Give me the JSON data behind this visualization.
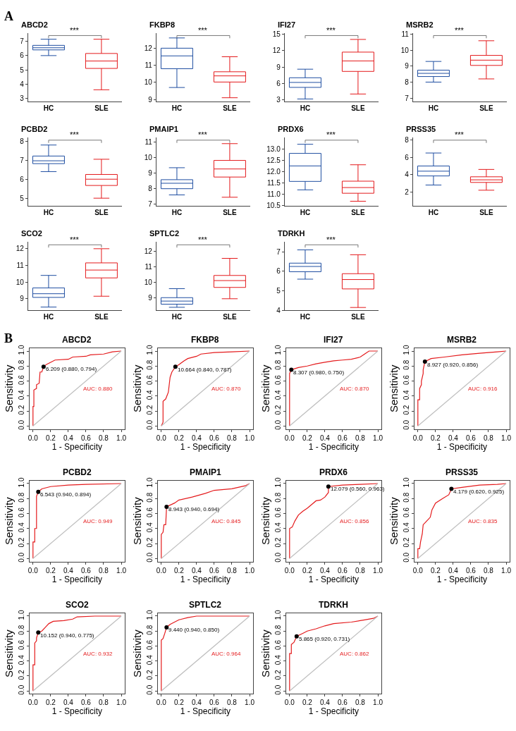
{
  "chart_data": [
    {
      "type": "box",
      "title": "ABCD2",
      "categories": [
        "HC",
        "SLE"
      ],
      "colors": [
        "#1f4ea1",
        "#e41a1c"
      ],
      "ylim": [
        2.8,
        7.6
      ],
      "yticks": [
        3,
        4,
        5,
        6,
        7
      ],
      "annotations": [
        "***",
        "A"
      ],
      "boxes": [
        {
          "low": 6.0,
          "q1": 6.4,
          "median": 6.55,
          "q3": 6.72,
          "high": 7.15
        },
        {
          "low": 3.6,
          "q1": 5.1,
          "median": 5.62,
          "q3": 6.15,
          "high": 7.15
        }
      ]
    },
    {
      "type": "box",
      "title": "FKBP8",
      "categories": [
        "HC",
        "SLE"
      ],
      "colors": [
        "#1f4ea1",
        "#e41a1c"
      ],
      "ylim": [
        8.9,
        12.9
      ],
      "yticks": [
        9,
        10,
        11,
        12
      ],
      "annotations": [
        "***"
      ],
      "boxes": [
        {
          "low": 9.7,
          "q1": 10.8,
          "median": 11.55,
          "q3": 12.0,
          "high": 12.6
        },
        {
          "low": 9.1,
          "q1": 10.02,
          "median": 10.38,
          "q3": 10.62,
          "high": 11.5
        }
      ]
    },
    {
      "type": "box",
      "title": "IFI27",
      "categories": [
        "HC",
        "SLE"
      ],
      "colors": [
        "#1f4ea1",
        "#e41a1c"
      ],
      "ylim": [
        2.8,
        15.2
      ],
      "yticks": [
        3,
        6,
        9,
        12,
        15
      ],
      "annotations": [
        "***"
      ],
      "boxes": [
        {
          "low": 3.2,
          "q1": 5.3,
          "median": 6.2,
          "q3": 7.05,
          "high": 8.6
        },
        {
          "low": 4.1,
          "q1": 8.2,
          "median": 10.1,
          "q3": 11.7,
          "high": 14.0
        }
      ]
    },
    {
      "type": "box",
      "title": "MSRB2",
      "categories": [
        "HC",
        "SLE"
      ],
      "colors": [
        "#1f4ea1",
        "#e41a1c"
      ],
      "ylim": [
        6.8,
        11.1
      ],
      "yticks": [
        7,
        8,
        9,
        10,
        11
      ],
      "annotations": [
        "***"
      ],
      "boxes": [
        {
          "low": 8.0,
          "q1": 8.35,
          "median": 8.55,
          "q3": 8.75,
          "high": 9.3
        },
        {
          "low": 8.2,
          "q1": 9.05,
          "median": 9.38,
          "q3": 9.68,
          "high": 10.6
        }
      ]
    },
    {
      "type": "box",
      "title": "PCBD2",
      "categories": [
        "HC",
        "SLE"
      ],
      "colors": [
        "#1f4ea1",
        "#e41a1c"
      ],
      "ylim": [
        4.6,
        8.2
      ],
      "yticks": [
        5,
        6,
        7,
        8
      ],
      "annotations": [
        "***"
      ],
      "boxes": [
        {
          "low": 6.4,
          "q1": 6.82,
          "median": 6.97,
          "q3": 7.22,
          "high": 7.8
        },
        {
          "low": 5.0,
          "q1": 5.67,
          "median": 6.0,
          "q3": 6.25,
          "high": 7.05
        }
      ]
    },
    {
      "type": "box",
      "title": "PMAIP1",
      "categories": [
        "HC",
        "SLE"
      ],
      "colors": [
        "#1f4ea1",
        "#e41a1c"
      ],
      "ylim": [
        6.9,
        11.3
      ],
      "yticks": [
        7,
        8,
        9,
        10,
        11
      ],
      "annotations": [
        "***"
      ],
      "boxes": [
        {
          "low": 7.6,
          "q1": 8.0,
          "median": 8.35,
          "q3": 8.58,
          "high": 9.35
        },
        {
          "low": 7.45,
          "q1": 8.75,
          "median": 9.27,
          "q3": 9.82,
          "high": 10.9
        }
      ]
    },
    {
      "type": "box",
      "title": "PRDX6",
      "categories": [
        "HC",
        "SLE"
      ],
      "colors": [
        "#1f4ea1",
        "#e41a1c"
      ],
      "ylim": [
        10.5,
        13.5
      ],
      "yticks": [
        {
          "value": 10.5,
          "label": "10.5"
        },
        {
          "value": 11,
          "label": "11.0"
        },
        {
          "value": 11.5,
          "label": "11.5"
        },
        {
          "value": 12,
          "label": "12.0"
        },
        {
          "value": 12.5,
          "label": "12.5"
        },
        {
          "value": 13,
          "label": "13.0"
        }
      ],
      "annotations": [
        "***"
      ],
      "boxes": [
        {
          "low": 11.2,
          "q1": 11.57,
          "median": 12.25,
          "q3": 12.8,
          "high": 13.2
        },
        {
          "low": 10.7,
          "q1": 11.05,
          "median": 11.3,
          "q3": 11.58,
          "high": 12.3
        }
      ]
    },
    {
      "type": "box",
      "title": "PRSS35",
      "categories": [
        "HC",
        "SLE"
      ],
      "colors": [
        "#1f4ea1",
        "#e41a1c"
      ],
      "ylim": [
        0.4,
        8.3
      ],
      "yticks": [
        2,
        4,
        6,
        8
      ],
      "annotations": [
        "***"
      ],
      "boxes": [
        {
          "low": 2.8,
          "q1": 3.85,
          "median": 4.4,
          "q3": 5.0,
          "high": 6.5
        },
        {
          "low": 2.2,
          "q1": 3.1,
          "median": 3.4,
          "q3": 3.75,
          "high": 4.6
        }
      ]
    },
    {
      "type": "box",
      "title": "SCO2",
      "categories": [
        "HC",
        "SLE"
      ],
      "colors": [
        "#1f4ea1",
        "#e41a1c"
      ],
      "ylim": [
        8.3,
        12.4
      ],
      "yticks": [
        9,
        10,
        11,
        12
      ],
      "annotations": [
        "***"
      ],
      "boxes": [
        {
          "low": 8.5,
          "q1": 9.08,
          "median": 9.3,
          "q3": 9.65,
          "high": 10.4
        },
        {
          "low": 9.15,
          "q1": 10.25,
          "median": 10.72,
          "q3": 11.15,
          "high": 12.0
        }
      ]
    },
    {
      "type": "box",
      "title": "SPTLC2",
      "categories": [
        "HC",
        "SLE"
      ],
      "colors": [
        "#1f4ea1",
        "#e41a1c"
      ],
      "ylim": [
        8.2,
        12.6
      ],
      "yticks": [
        9,
        10,
        11,
        12
      ],
      "annotations": [
        "***"
      ],
      "boxes": [
        {
          "low": 8.4,
          "q1": 8.6,
          "median": 8.8,
          "q3": 9.02,
          "high": 9.6
        },
        {
          "low": 8.95,
          "q1": 9.68,
          "median": 10.12,
          "q3": 10.45,
          "high": 11.55
        }
      ]
    },
    {
      "type": "box",
      "title": "TDRKH",
      "categories": [
        "HC",
        "SLE"
      ],
      "colors": [
        "#1f4ea1",
        "#e41a1c"
      ],
      "ylim": [
        4,
        7.5
      ],
      "yticks": [
        4,
        5,
        6,
        7
      ],
      "annotations": [
        "***"
      ],
      "boxes": [
        {
          "low": 5.6,
          "q1": 5.98,
          "median": 6.25,
          "q3": 6.42,
          "high": 7.1
        },
        {
          "low": 4.15,
          "q1": 5.1,
          "median": 5.58,
          "q3": 5.88,
          "high": 6.85
        }
      ]
    },
    {
      "type": "line",
      "title": "ABCD2",
      "xlabel": "1 - Specificity",
      "ylabel": "Sensitivity",
      "xlim": [
        -0.04,
        1.04
      ],
      "ylim": [
        -0.04,
        1.04
      ],
      "xticks": [
        {
          "value": 0,
          "label": "0.0"
        },
        {
          "value": 0.2,
          "label": "0.2"
        },
        {
          "value": 0.4,
          "label": "0.4"
        },
        {
          "value": 0.6,
          "label": "0.6"
        },
        {
          "value": 0.8,
          "label": "0.8"
        },
        {
          "value": 1,
          "label": "1.0"
        }
      ],
      "yticks": [
        {
          "value": 0,
          "label": "0.0"
        },
        {
          "value": 0.2,
          "label": "0.2"
        },
        {
          "value": 0.4,
          "label": "0.4"
        },
        {
          "value": 0.6,
          "label": "0.6"
        },
        {
          "value": 0.8,
          "label": "0.8"
        },
        {
          "value": 1,
          "label": "1.0"
        }
      ],
      "annotations": [
        {
          "text": "6.209 (0.880, 0.794)",
          "x": 0.12,
          "y": 0.794
        },
        "AUC: 0.880",
        "B"
      ],
      "series": [
        {
          "color": "#e41a1c",
          "x": [
            0,
            0,
            0.01,
            0.01,
            0.04,
            0.04,
            0.07,
            0.08,
            0.1,
            0.12,
            0.15,
            0.2,
            0.25,
            0.4,
            0.45,
            0.6,
            0.65,
            0.8,
            0.9,
            1
          ],
          "values": [
            0,
            0.26,
            0.26,
            0.48,
            0.5,
            0.55,
            0.57,
            0.72,
            0.72,
            0.79,
            0.82,
            0.85,
            0.88,
            0.89,
            0.92,
            0.93,
            0.95,
            0.96,
            0.99,
            1
          ]
        },
        {
          "color": "#bebebe",
          "x": [
            0,
            1
          ],
          "values": [
            0,
            1
          ]
        },
        {
          "type": "scatter",
          "marker": "circle",
          "color": "#000000",
          "x": [
            0.12
          ],
          "values": [
            0.79
          ]
        }
      ]
    },
    {
      "type": "line",
      "title": "FKBP8",
      "xlabel": "1 - Specificity",
      "ylabel": "Sensitivity",
      "xlim": [
        -0.04,
        1.04
      ],
      "ylim": [
        -0.04,
        1.04
      ],
      "xticks": [
        {
          "value": 0,
          "label": "0.0"
        },
        {
          "value": 0.2,
          "label": "0.2"
        },
        {
          "value": 0.4,
          "label": "0.4"
        },
        {
          "value": 0.6,
          "label": "0.6"
        },
        {
          "value": 0.8,
          "label": "0.8"
        },
        {
          "value": 1,
          "label": "1.0"
        }
      ],
      "yticks": [
        {
          "value": 0,
          "label": "0.0"
        },
        {
          "value": 0.2,
          "label": "0.2"
        },
        {
          "value": 0.4,
          "label": "0.4"
        },
        {
          "value": 0.6,
          "label": "0.6"
        },
        {
          "value": 0.8,
          "label": "0.8"
        },
        {
          "value": 1,
          "label": "1.0"
        }
      ],
      "annotations": [
        {
          "text": "10.664 (0.840, 0.787)",
          "x": 0.16,
          "y": 0.787
        },
        "AUC: 0.870"
      ],
      "series": [
        {
          "color": "#e41a1c",
          "x": [
            0,
            0.02,
            0.02,
            0.05,
            0.08,
            0.1,
            0.12,
            0.16,
            0.2,
            0.26,
            0.3,
            0.4,
            0.45,
            0.6,
            0.8,
            1
          ],
          "values": [
            0,
            0.05,
            0.33,
            0.36,
            0.45,
            0.65,
            0.72,
            0.79,
            0.82,
            0.87,
            0.9,
            0.93,
            0.96,
            0.98,
            0.99,
            1
          ]
        },
        {
          "color": "#bebebe",
          "x": [
            0,
            1
          ],
          "values": [
            0,
            1
          ]
        },
        {
          "type": "scatter",
          "marker": "circle",
          "color": "#000000",
          "x": [
            0.16
          ],
          "values": [
            0.79
          ]
        }
      ]
    },
    {
      "type": "line",
      "title": "IFI27",
      "xlabel": "1 - Specificity",
      "ylabel": "Sensitivity",
      "xlim": [
        -0.04,
        1.04
      ],
      "ylim": [
        -0.04,
        1.04
      ],
      "xticks": [
        {
          "value": 0,
          "label": "0.0"
        },
        {
          "value": 0.2,
          "label": "0.2"
        },
        {
          "value": 0.4,
          "label": "0.4"
        },
        {
          "value": 0.6,
          "label": "0.6"
        },
        {
          "value": 0.8,
          "label": "0.8"
        },
        {
          "value": 1,
          "label": "1.0"
        }
      ],
      "yticks": [
        {
          "value": 0,
          "label": "0.0"
        },
        {
          "value": 0.2,
          "label": "0.2"
        },
        {
          "value": 0.4,
          "label": "0.4"
        },
        {
          "value": 0.6,
          "label": "0.6"
        },
        {
          "value": 0.8,
          "label": "0.8"
        },
        {
          "value": 1,
          "label": "1.0"
        }
      ],
      "annotations": [
        {
          "text": "8.307 (0.980, 0.750)",
          "x": 0.02,
          "y": 0.75
        },
        "AUC: 0.870"
      ],
      "series": [
        {
          "color": "#e41a1c",
          "x": [
            0,
            0,
            0.02,
            0.1,
            0.2,
            0.3,
            0.4,
            0.5,
            0.6,
            0.7,
            0.8,
            0.85,
            0.9,
            1
          ],
          "values": [
            0,
            0.7,
            0.75,
            0.78,
            0.8,
            0.83,
            0.85,
            0.87,
            0.88,
            0.89,
            0.92,
            0.96,
            1,
            1
          ]
        },
        {
          "color": "#bebebe",
          "x": [
            0,
            1
          ],
          "values": [
            0,
            1
          ]
        },
        {
          "type": "scatter",
          "marker": "circle",
          "color": "#000000",
          "x": [
            0.02
          ],
          "values": [
            0.75
          ]
        }
      ]
    },
    {
      "type": "line",
      "title": "MSRB2",
      "xlabel": "1 - Specificity",
      "ylabel": "Sensitivity",
      "xlim": [
        -0.04,
        1.04
      ],
      "ylim": [
        -0.04,
        1.04
      ],
      "xticks": [
        {
          "value": 0,
          "label": "0.0"
        },
        {
          "value": 0.2,
          "label": "0.2"
        },
        {
          "value": 0.4,
          "label": "0.4"
        },
        {
          "value": 0.6,
          "label": "0.6"
        },
        {
          "value": 0.8,
          "label": "0.8"
        },
        {
          "value": 1,
          "label": "1.0"
        }
      ],
      "yticks": [
        {
          "value": 0,
          "label": "0.0"
        },
        {
          "value": 0.2,
          "label": "0.2"
        },
        {
          "value": 0.4,
          "label": "0.4"
        },
        {
          "value": 0.6,
          "label": "0.6"
        },
        {
          "value": 0.8,
          "label": "0.8"
        },
        {
          "value": 1,
          "label": "1.0"
        }
      ],
      "annotations": [
        {
          "text": "8.927 (0.920, 0.856)",
          "x": 0.08,
          "y": 0.856
        },
        "AUC: 0.916"
      ],
      "series": [
        {
          "color": "#e41a1c",
          "x": [
            0,
            0,
            0.02,
            0.02,
            0.04,
            0.04,
            0.06,
            0.06,
            0.08,
            0.15,
            0.3,
            0.5,
            0.7,
            0.9,
            1
          ],
          "values": [
            0,
            0.35,
            0.35,
            0.5,
            0.55,
            0.6,
            0.7,
            0.75,
            0.86,
            0.9,
            0.92,
            0.95,
            0.97,
            0.99,
            1
          ]
        },
        {
          "color": "#bebebe",
          "x": [
            0,
            1
          ],
          "values": [
            0,
            1
          ]
        },
        {
          "type": "scatter",
          "marker": "circle",
          "color": "#000000",
          "x": [
            0.08
          ],
          "values": [
            0.86
          ]
        }
      ]
    },
    {
      "type": "line",
      "title": "PCBD2",
      "xlabel": "1 - Specificity",
      "ylabel": "Sensitivity",
      "xlim": [
        -0.04,
        1.04
      ],
      "ylim": [
        -0.04,
        1.04
      ],
      "xticks": [
        {
          "value": 0,
          "label": "0.0"
        },
        {
          "value": 0.2,
          "label": "0.2"
        },
        {
          "value": 0.4,
          "label": "0.4"
        },
        {
          "value": 0.6,
          "label": "0.6"
        },
        {
          "value": 0.8,
          "label": "0.8"
        },
        {
          "value": 1,
          "label": "1.0"
        }
      ],
      "yticks": [
        {
          "value": 0,
          "label": "0.0"
        },
        {
          "value": 0.2,
          "label": "0.2"
        },
        {
          "value": 0.4,
          "label": "0.4"
        },
        {
          "value": 0.6,
          "label": "0.6"
        },
        {
          "value": 0.8,
          "label": "0.8"
        },
        {
          "value": 1,
          "label": "1.0"
        }
      ],
      "annotations": [
        {
          "text": "6.543 (0.940, 0.894)",
          "x": 0.06,
          "y": 0.894
        },
        "AUC: 0.949"
      ],
      "series": [
        {
          "color": "#e41a1c",
          "x": [
            0,
            0,
            0.02,
            0.02,
            0.04,
            0.04,
            0.06,
            0.1,
            0.2,
            0.4,
            0.6,
            1
          ],
          "values": [
            0,
            0.22,
            0.22,
            0.4,
            0.4,
            0.83,
            0.89,
            0.93,
            0.96,
            0.98,
            0.99,
            1
          ]
        },
        {
          "color": "#bebebe",
          "x": [
            0,
            1
          ],
          "values": [
            0,
            1
          ]
        },
        {
          "type": "scatter",
          "marker": "circle",
          "color": "#000000",
          "x": [
            0.06
          ],
          "values": [
            0.89
          ]
        }
      ]
    },
    {
      "type": "line",
      "title": "PMAIP1",
      "xlabel": "1 - Specificity",
      "ylabel": "Sensitivity",
      "xlim": [
        -0.04,
        1.04
      ],
      "ylim": [
        -0.04,
        1.04
      ],
      "xticks": [
        {
          "value": 0,
          "label": "0.0"
        },
        {
          "value": 0.2,
          "label": "0.2"
        },
        {
          "value": 0.4,
          "label": "0.4"
        },
        {
          "value": 0.6,
          "label": "0.6"
        },
        {
          "value": 0.8,
          "label": "0.8"
        },
        {
          "value": 1,
          "label": "1.0"
        }
      ],
      "yticks": [
        {
          "value": 0,
          "label": "0.0"
        },
        {
          "value": 0.2,
          "label": "0.2"
        },
        {
          "value": 0.4,
          "label": "0.4"
        },
        {
          "value": 0.6,
          "label": "0.6"
        },
        {
          "value": 0.8,
          "label": "0.8"
        },
        {
          "value": 1,
          "label": "1.0"
        }
      ],
      "annotations": [
        {
          "text": "8.943 (0.940, 0.694)",
          "x": 0.06,
          "y": 0.694
        },
        "AUC: 0.845"
      ],
      "series": [
        {
          "color": "#e41a1c",
          "x": [
            0,
            0,
            0.02,
            0.03,
            0.05,
            0.06,
            0.15,
            0.2,
            0.35,
            0.5,
            0.6,
            0.8,
            0.95,
            1
          ],
          "values": [
            0,
            0.32,
            0.35,
            0.45,
            0.45,
            0.69,
            0.74,
            0.78,
            0.82,
            0.87,
            0.91,
            0.93,
            0.97,
            1
          ]
        },
        {
          "color": "#bebebe",
          "x": [
            0,
            1
          ],
          "values": [
            0,
            1
          ]
        },
        {
          "type": "scatter",
          "marker": "circle",
          "color": "#000000",
          "x": [
            0.06
          ],
          "values": [
            0.69
          ]
        }
      ]
    },
    {
      "type": "line",
      "title": "PRDX6",
      "xlabel": "1 - Specificity",
      "ylabel": "Sensitivity",
      "xlim": [
        -0.04,
        1.04
      ],
      "ylim": [
        -0.04,
        1.04
      ],
      "xticks": [
        {
          "value": 0,
          "label": "0.0"
        },
        {
          "value": 0.2,
          "label": "0.2"
        },
        {
          "value": 0.4,
          "label": "0.4"
        },
        {
          "value": 0.6,
          "label": "0.6"
        },
        {
          "value": 0.8,
          "label": "0.8"
        },
        {
          "value": 1,
          "label": "1.0"
        }
      ],
      "yticks": [
        {
          "value": 0,
          "label": "0.0"
        },
        {
          "value": 0.2,
          "label": "0.2"
        },
        {
          "value": 0.4,
          "label": "0.4"
        },
        {
          "value": 0.6,
          "label": "0.6"
        },
        {
          "value": 0.8,
          "label": "0.8"
        },
        {
          "value": 1,
          "label": "1.0"
        }
      ],
      "annotations": [
        {
          "text": "12.079 (0.560, 0.963)",
          "x": 0.44,
          "y": 0.963
        },
        "AUC: 0.856"
      ],
      "series": [
        {
          "color": "#e41a1c",
          "x": [
            0,
            0,
            0.03,
            0.06,
            0.1,
            0.15,
            0.2,
            0.25,
            0.3,
            0.35,
            0.4,
            0.44,
            0.44,
            0.6,
            0.8,
            1
          ],
          "values": [
            0,
            0.4,
            0.42,
            0.5,
            0.58,
            0.63,
            0.67,
            0.72,
            0.77,
            0.78,
            0.82,
            0.88,
            0.96,
            0.98,
            0.99,
            1
          ]
        },
        {
          "color": "#bebebe",
          "x": [
            0,
            1
          ],
          "values": [
            0,
            1
          ]
        },
        {
          "type": "scatter",
          "marker": "circle",
          "color": "#000000",
          "x": [
            0.44
          ],
          "values": [
            0.96
          ]
        }
      ]
    },
    {
      "type": "line",
      "title": "PRSS35",
      "xlabel": "1 - Specificity",
      "ylabel": "Sensitivity",
      "xlim": [
        -0.04,
        1.04
      ],
      "ylim": [
        -0.04,
        1.04
      ],
      "xticks": [
        {
          "value": 0,
          "label": "0.0"
        },
        {
          "value": 0.2,
          "label": "0.2"
        },
        {
          "value": 0.4,
          "label": "0.4"
        },
        {
          "value": 0.6,
          "label": "0.6"
        },
        {
          "value": 0.8,
          "label": "0.8"
        },
        {
          "value": 1,
          "label": "1.0"
        }
      ],
      "yticks": [
        {
          "value": 0,
          "label": "0.0"
        },
        {
          "value": 0.2,
          "label": "0.2"
        },
        {
          "value": 0.4,
          "label": "0.4"
        },
        {
          "value": 0.6,
          "label": "0.6"
        },
        {
          "value": 0.8,
          "label": "0.8"
        },
        {
          "value": 1,
          "label": "1.0"
        }
      ],
      "annotations": [
        {
          "text": "4.179 (0.620, 0.925)",
          "x": 0.38,
          "y": 0.925
        },
        "AUC: 0.835"
      ],
      "series": [
        {
          "color": "#e41a1c",
          "x": [
            0,
            0,
            0.02,
            0.03,
            0.05,
            0.06,
            0.1,
            0.14,
            0.16,
            0.2,
            0.28,
            0.35,
            0.38,
            0.5,
            0.7,
            0.9,
            1
          ],
          "values": [
            0,
            0.13,
            0.13,
            0.22,
            0.33,
            0.45,
            0.5,
            0.55,
            0.65,
            0.74,
            0.8,
            0.85,
            0.93,
            0.95,
            0.98,
            0.99,
            1
          ]
        },
        {
          "color": "#bebebe",
          "x": [
            0,
            1
          ],
          "values": [
            0,
            1
          ]
        },
        {
          "type": "scatter",
          "marker": "circle",
          "color": "#000000",
          "x": [
            0.38
          ],
          "values": [
            0.93
          ]
        }
      ]
    },
    {
      "type": "line",
      "title": "SCO2",
      "xlabel": "1 - Specificity",
      "ylabel": "Sensitivity",
      "xlim": [
        -0.04,
        1.04
      ],
      "ylim": [
        -0.04,
        1.04
      ],
      "xticks": [
        {
          "value": 0,
          "label": "0.0"
        },
        {
          "value": 0.2,
          "label": "0.2"
        },
        {
          "value": 0.4,
          "label": "0.4"
        },
        {
          "value": 0.6,
          "label": "0.6"
        },
        {
          "value": 0.8,
          "label": "0.8"
        },
        {
          "value": 1,
          "label": "1.0"
        }
      ],
      "yticks": [
        {
          "value": 0,
          "label": "0.0"
        },
        {
          "value": 0.2,
          "label": "0.2"
        },
        {
          "value": 0.4,
          "label": "0.4"
        },
        {
          "value": 0.6,
          "label": "0.6"
        },
        {
          "value": 0.8,
          "label": "0.8"
        },
        {
          "value": 1,
          "label": "1.0"
        }
      ],
      "annotations": [
        {
          "text": "10.152 (0.940, 0.775)",
          "x": 0.06,
          "y": 0.775
        },
        "AUC: 0.932"
      ],
      "series": [
        {
          "color": "#e41a1c",
          "x": [
            0,
            0,
            0.02,
            0.02,
            0.04,
            0.04,
            0.06,
            0.1,
            0.14,
            0.18,
            0.23,
            0.35,
            0.45,
            0.5,
            0.7,
            1
          ],
          "values": [
            0,
            0.35,
            0.35,
            0.64,
            0.67,
            0.71,
            0.78,
            0.8,
            0.85,
            0.9,
            0.93,
            0.94,
            0.96,
            0.99,
            1,
            1
          ]
        },
        {
          "color": "#bebebe",
          "x": [
            0,
            1
          ],
          "values": [
            0,
            1
          ]
        },
        {
          "type": "scatter",
          "marker": "circle",
          "color": "#000000",
          "x": [
            0.06
          ],
          "values": [
            0.78
          ]
        }
      ]
    },
    {
      "type": "line",
      "title": "SPTLC2",
      "xlabel": "1 - Specificity",
      "ylabel": "Sensitivity",
      "xlim": [
        -0.04,
        1.04
      ],
      "ylim": [
        -0.04,
        1.04
      ],
      "xticks": [
        {
          "value": 0,
          "label": "0.0"
        },
        {
          "value": 0.2,
          "label": "0.2"
        },
        {
          "value": 0.4,
          "label": "0.4"
        },
        {
          "value": 0.6,
          "label": "0.6"
        },
        {
          "value": 0.8,
          "label": "0.8"
        },
        {
          "value": 1,
          "label": "1.0"
        }
      ],
      "yticks": [
        {
          "value": 0,
          "label": "0.0"
        },
        {
          "value": 0.2,
          "label": "0.2"
        },
        {
          "value": 0.4,
          "label": "0.4"
        },
        {
          "value": 0.6,
          "label": "0.6"
        },
        {
          "value": 0.8,
          "label": "0.8"
        },
        {
          "value": 1,
          "label": "1.0"
        }
      ],
      "annotations": [
        {
          "text": "9.440 (0.940, 0.850)",
          "x": 0.06,
          "y": 0.85
        },
        "AUC: 0.964"
      ],
      "series": [
        {
          "color": "#e41a1c",
          "x": [
            0,
            0,
            0.02,
            0.04,
            0.06,
            0.1,
            0.15,
            0.2,
            0.3,
            0.4,
            1
          ],
          "values": [
            0,
            0.68,
            0.7,
            0.77,
            0.85,
            0.89,
            0.92,
            0.95,
            0.98,
            1,
            1
          ]
        },
        {
          "color": "#bebebe",
          "x": [
            0,
            1
          ],
          "values": [
            0,
            1
          ]
        },
        {
          "type": "scatter",
          "marker": "circle",
          "color": "#000000",
          "x": [
            0.06
          ],
          "values": [
            0.85
          ]
        }
      ]
    },
    {
      "type": "line",
      "title": "TDRKH",
      "xlabel": "1 - Specificity",
      "ylabel": "Sensitivity",
      "xlim": [
        -0.04,
        1.04
      ],
      "ylim": [
        -0.04,
        1.04
      ],
      "xticks": [
        {
          "value": 0,
          "label": "0.0"
        },
        {
          "value": 0.2,
          "label": "0.2"
        },
        {
          "value": 0.4,
          "label": "0.4"
        },
        {
          "value": 0.6,
          "label": "0.6"
        },
        {
          "value": 0.8,
          "label": "0.8"
        },
        {
          "value": 1,
          "label": "1.0"
        }
      ],
      "yticks": [
        {
          "value": 0,
          "label": "0.0"
        },
        {
          "value": 0.2,
          "label": "0.2"
        },
        {
          "value": 0.4,
          "label": "0.4"
        },
        {
          "value": 0.6,
          "label": "0.6"
        },
        {
          "value": 0.8,
          "label": "0.8"
        },
        {
          "value": 1,
          "label": "1.0"
        }
      ],
      "annotations": [
        {
          "text": "5.865 (0.920, 0.731)",
          "x": 0.08,
          "y": 0.731
        },
        "AUC: 0.862"
      ],
      "series": [
        {
          "color": "#e41a1c",
          "x": [
            0,
            0,
            0.02,
            0.02,
            0.05,
            0.08,
            0.15,
            0.2,
            0.3,
            0.4,
            0.5,
            0.7,
            0.85,
            0.95,
            1
          ],
          "values": [
            0,
            0.5,
            0.5,
            0.62,
            0.65,
            0.73,
            0.77,
            0.8,
            0.83,
            0.87,
            0.9,
            0.92,
            0.95,
            0.97,
            1
          ]
        },
        {
          "color": "#bebebe",
          "x": [
            0,
            1
          ],
          "values": [
            0,
            1
          ]
        },
        {
          "type": "scatter",
          "marker": "circle",
          "color": "#000000",
          "x": [
            0.08
          ],
          "values": [
            0.73
          ]
        }
      ]
    }
  ]
}
